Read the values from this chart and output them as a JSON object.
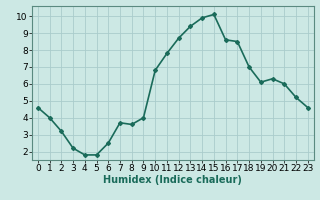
{
  "x": [
    0,
    1,
    2,
    3,
    4,
    5,
    6,
    7,
    8,
    9,
    10,
    11,
    12,
    13,
    14,
    15,
    16,
    17,
    18,
    19,
    20,
    21,
    22,
    23
  ],
  "y": [
    4.6,
    4.0,
    3.2,
    2.2,
    1.8,
    1.8,
    2.5,
    3.7,
    3.6,
    4.0,
    6.8,
    7.8,
    8.7,
    9.4,
    9.9,
    10.1,
    8.6,
    8.5,
    7.0,
    6.1,
    6.3,
    6.0,
    5.2,
    4.6
  ],
  "line_color": "#1a6b5a",
  "marker": "D",
  "marker_size": 2.0,
  "bg_color": "#cce8e4",
  "grid_color": "#aacccc",
  "xlabel": "Humidex (Indice chaleur)",
  "xlim": [
    -0.5,
    23.5
  ],
  "ylim": [
    1.5,
    10.6
  ],
  "yticks": [
    2,
    3,
    4,
    5,
    6,
    7,
    8,
    9,
    10
  ],
  "xticks": [
    0,
    1,
    2,
    3,
    4,
    5,
    6,
    7,
    8,
    9,
    10,
    11,
    12,
    13,
    14,
    15,
    16,
    17,
    18,
    19,
    20,
    21,
    22,
    23
  ],
  "xlabel_fontsize": 7.0,
  "tick_fontsize": 6.5,
  "linewidth": 1.2
}
